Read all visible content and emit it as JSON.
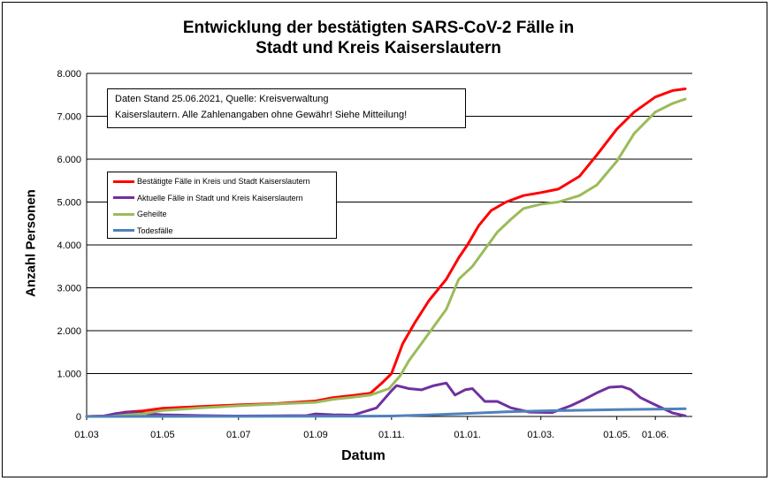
{
  "chart_data": {
    "type": "line",
    "title_line1": "Entwicklung der bestätigten SARS-CoV-2 Fälle in",
    "title_line2": "Stadt und Kreis Kaiserslautern",
    "xlabel": "Datum",
    "ylabel": "Anzahl Personen",
    "ylim": [
      0,
      8000
    ],
    "yticks": [
      "0",
      "1.000",
      "2.000",
      "3.000",
      "4.000",
      "5.000",
      "6.000",
      "7.000",
      "8.000"
    ],
    "xticks": [
      "01.03",
      "01.05",
      "01.07",
      "01.09",
      "01.11.",
      "01.01.",
      "01.03.",
      "01.05.",
      "01.06."
    ],
    "x_domain": [
      "2020-03-01",
      "2021-06-25"
    ],
    "grid": "horizontal",
    "note_line1": "Daten Stand 25.06.2021, Quelle: Kreisverwaltung",
    "note_line2": "Kaiserslautern. Alle Zahlenangaben ohne Gewähr! Siehe Mitteilung!",
    "series": [
      {
        "name": "Bestätigte Fälle in Kreis und Stadt Kaiserslautern",
        "color": "#ff0000",
        "points": [
          [
            "2020-03-01",
            0
          ],
          [
            "2020-03-15",
            10
          ],
          [
            "2020-04-01",
            100
          ],
          [
            "2020-04-15",
            130
          ],
          [
            "2020-05-01",
            190
          ],
          [
            "2020-06-01",
            230
          ],
          [
            "2020-07-01",
            270
          ],
          [
            "2020-08-01",
            300
          ],
          [
            "2020-09-01",
            360
          ],
          [
            "2020-09-15",
            440
          ],
          [
            "2020-10-01",
            490
          ],
          [
            "2020-10-15",
            540
          ],
          [
            "2020-10-25",
            800
          ],
          [
            "2020-11-01",
            1000
          ],
          [
            "2020-11-10",
            1700
          ],
          [
            "2020-11-20",
            2200
          ],
          [
            "2020-12-01",
            2700
          ],
          [
            "2020-12-15",
            3200
          ],
          [
            "2020-12-25",
            3700
          ],
          [
            "2021-01-01",
            4000
          ],
          [
            "2021-01-10",
            4450
          ],
          [
            "2021-01-20",
            4800
          ],
          [
            "2021-02-01",
            5000
          ],
          [
            "2021-02-15",
            5150
          ],
          [
            "2021-03-01",
            5220
          ],
          [
            "2021-03-15",
            5300
          ],
          [
            "2021-04-01",
            5600
          ],
          [
            "2021-04-15",
            6100
          ],
          [
            "2021-05-01",
            6700
          ],
          [
            "2021-05-15",
            7100
          ],
          [
            "2021-06-01",
            7450
          ],
          [
            "2021-06-15",
            7600
          ],
          [
            "2021-06-25",
            7640
          ]
        ]
      },
      {
        "name": "Aktuelle Fälle in Stadt und Kreis Kaiserslautern",
        "color": "#7030a0",
        "points": [
          [
            "2020-03-01",
            0
          ],
          [
            "2020-03-15",
            10
          ],
          [
            "2020-03-25",
            70
          ],
          [
            "2020-04-05",
            100
          ],
          [
            "2020-04-20",
            60
          ],
          [
            "2020-05-01",
            40
          ],
          [
            "2020-06-01",
            20
          ],
          [
            "2020-07-01",
            10
          ],
          [
            "2020-08-01",
            15
          ],
          [
            "2020-08-25",
            20
          ],
          [
            "2020-09-01",
            60
          ],
          [
            "2020-09-15",
            40
          ],
          [
            "2020-10-01",
            30
          ],
          [
            "2020-10-20",
            200
          ],
          [
            "2020-11-01",
            600
          ],
          [
            "2020-11-05",
            720
          ],
          [
            "2020-11-15",
            650
          ],
          [
            "2020-11-25",
            620
          ],
          [
            "2020-12-05",
            720
          ],
          [
            "2020-12-15",
            780
          ],
          [
            "2020-12-22",
            500
          ],
          [
            "2020-12-30",
            620
          ],
          [
            "2021-01-05",
            650
          ],
          [
            "2021-01-15",
            350
          ],
          [
            "2021-01-25",
            350
          ],
          [
            "2021-02-05",
            200
          ],
          [
            "2021-02-20",
            100
          ],
          [
            "2021-03-10",
            90
          ],
          [
            "2021-03-25",
            250
          ],
          [
            "2021-04-05",
            400
          ],
          [
            "2021-04-15",
            550
          ],
          [
            "2021-04-25",
            680
          ],
          [
            "2021-05-05",
            700
          ],
          [
            "2021-05-12",
            630
          ],
          [
            "2021-05-20",
            440
          ],
          [
            "2021-06-01",
            270
          ],
          [
            "2021-06-15",
            80
          ],
          [
            "2021-06-25",
            15
          ]
        ]
      },
      {
        "name": "Geheilte",
        "color": "#9bbb59",
        "points": [
          [
            "2020-03-01",
            0
          ],
          [
            "2020-03-20",
            0
          ],
          [
            "2020-04-01",
            30
          ],
          [
            "2020-04-15",
            60
          ],
          [
            "2020-05-01",
            140
          ],
          [
            "2020-06-01",
            200
          ],
          [
            "2020-07-01",
            250
          ],
          [
            "2020-08-01",
            290
          ],
          [
            "2020-09-01",
            330
          ],
          [
            "2020-09-15",
            400
          ],
          [
            "2020-10-01",
            450
          ],
          [
            "2020-10-15",
            500
          ],
          [
            "2020-10-30",
            650
          ],
          [
            "2020-11-08",
            950
          ],
          [
            "2020-11-15",
            1300
          ],
          [
            "2020-11-25",
            1700
          ],
          [
            "2020-12-05",
            2100
          ],
          [
            "2020-12-15",
            2500
          ],
          [
            "2020-12-25",
            3200
          ],
          [
            "2021-01-05",
            3500
          ],
          [
            "2021-01-15",
            3900
          ],
          [
            "2021-01-25",
            4300
          ],
          [
            "2021-02-05",
            4600
          ],
          [
            "2021-02-15",
            4850
          ],
          [
            "2021-03-01",
            4950
          ],
          [
            "2021-03-15",
            5000
          ],
          [
            "2021-04-01",
            5150
          ],
          [
            "2021-04-15",
            5400
          ],
          [
            "2021-05-01",
            5950
          ],
          [
            "2021-05-15",
            6600
          ],
          [
            "2021-06-01",
            7100
          ],
          [
            "2021-06-15",
            7300
          ],
          [
            "2021-06-25",
            7400
          ]
        ]
      },
      {
        "name": "Todesfälle",
        "color": "#4f81bd",
        "points": [
          [
            "2020-03-01",
            0
          ],
          [
            "2020-06-01",
            2
          ],
          [
            "2020-10-01",
            5
          ],
          [
            "2020-11-01",
            10
          ],
          [
            "2020-12-01",
            35
          ],
          [
            "2021-01-01",
            70
          ],
          [
            "2021-02-01",
            110
          ],
          [
            "2021-03-01",
            130
          ],
          [
            "2021-04-01",
            145
          ],
          [
            "2021-05-01",
            160
          ],
          [
            "2021-06-01",
            170
          ],
          [
            "2021-06-25",
            180
          ]
        ]
      }
    ]
  }
}
